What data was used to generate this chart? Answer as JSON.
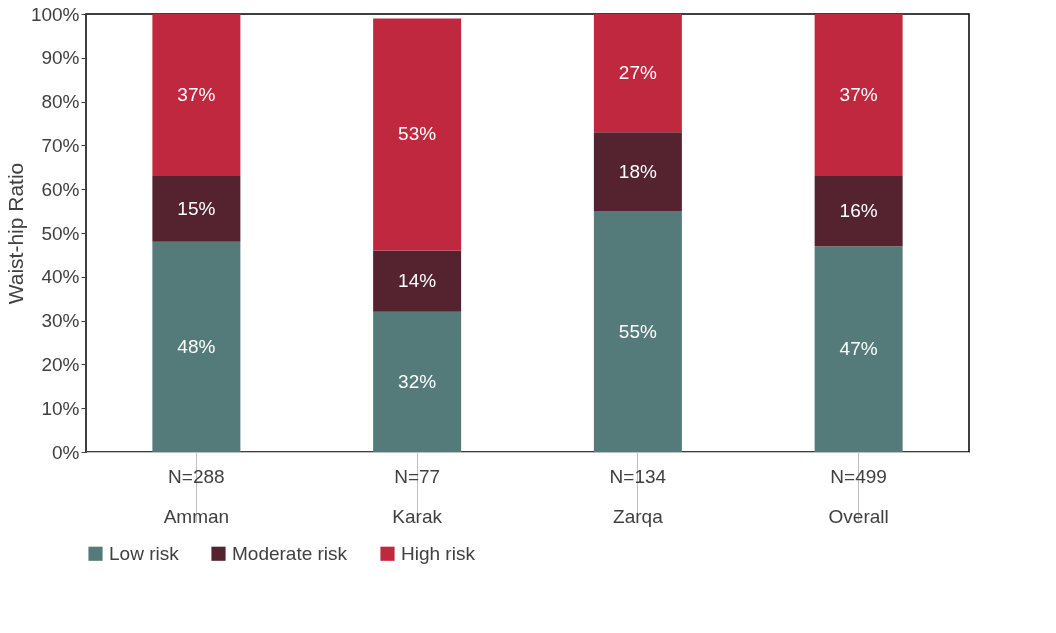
{
  "chart_data": {
    "type": "bar",
    "stacked": true,
    "ylabel": "Waist-hip Ratio",
    "categories": [
      "N=288\nAmman",
      "N=77\nKarak",
      "N=134\nZarqa",
      "N=499\nOverall"
    ],
    "series": [
      {
        "name": "Low risk",
        "color": "#547a7a",
        "values": [
          48,
          32,
          55,
          47
        ]
      },
      {
        "name": "Moderate risk",
        "color": "#54232f",
        "values": [
          15,
          14,
          18,
          16
        ]
      },
      {
        "name": "High risk",
        "color": "#c0283f",
        "values": [
          37,
          53,
          27,
          37
        ]
      }
    ],
    "value_labels": [
      [
        "48%",
        "32%",
        "55%",
        "47%"
      ],
      [
        "15%",
        "14%",
        "18%",
        "16%"
      ],
      [
        "37%",
        "53%",
        "27%",
        "37%"
      ]
    ],
    "ylim": [
      0,
      100
    ],
    "yticks": [
      {
        "value": 0,
        "label": "0%"
      },
      {
        "value": 10,
        "label": "10%"
      },
      {
        "value": 20,
        "label": "20%"
      },
      {
        "value": 30,
        "label": "30%"
      },
      {
        "value": 40,
        "label": "40%"
      },
      {
        "value": 50,
        "label": "50%"
      },
      {
        "value": 60,
        "label": "60%"
      },
      {
        "value": 70,
        "label": "70%"
      },
      {
        "value": 80,
        "label": "80%"
      },
      {
        "value": 90,
        "label": "90%"
      },
      {
        "value": 100,
        "label": "100%"
      }
    ],
    "grid": false,
    "legend": "bottom"
  }
}
